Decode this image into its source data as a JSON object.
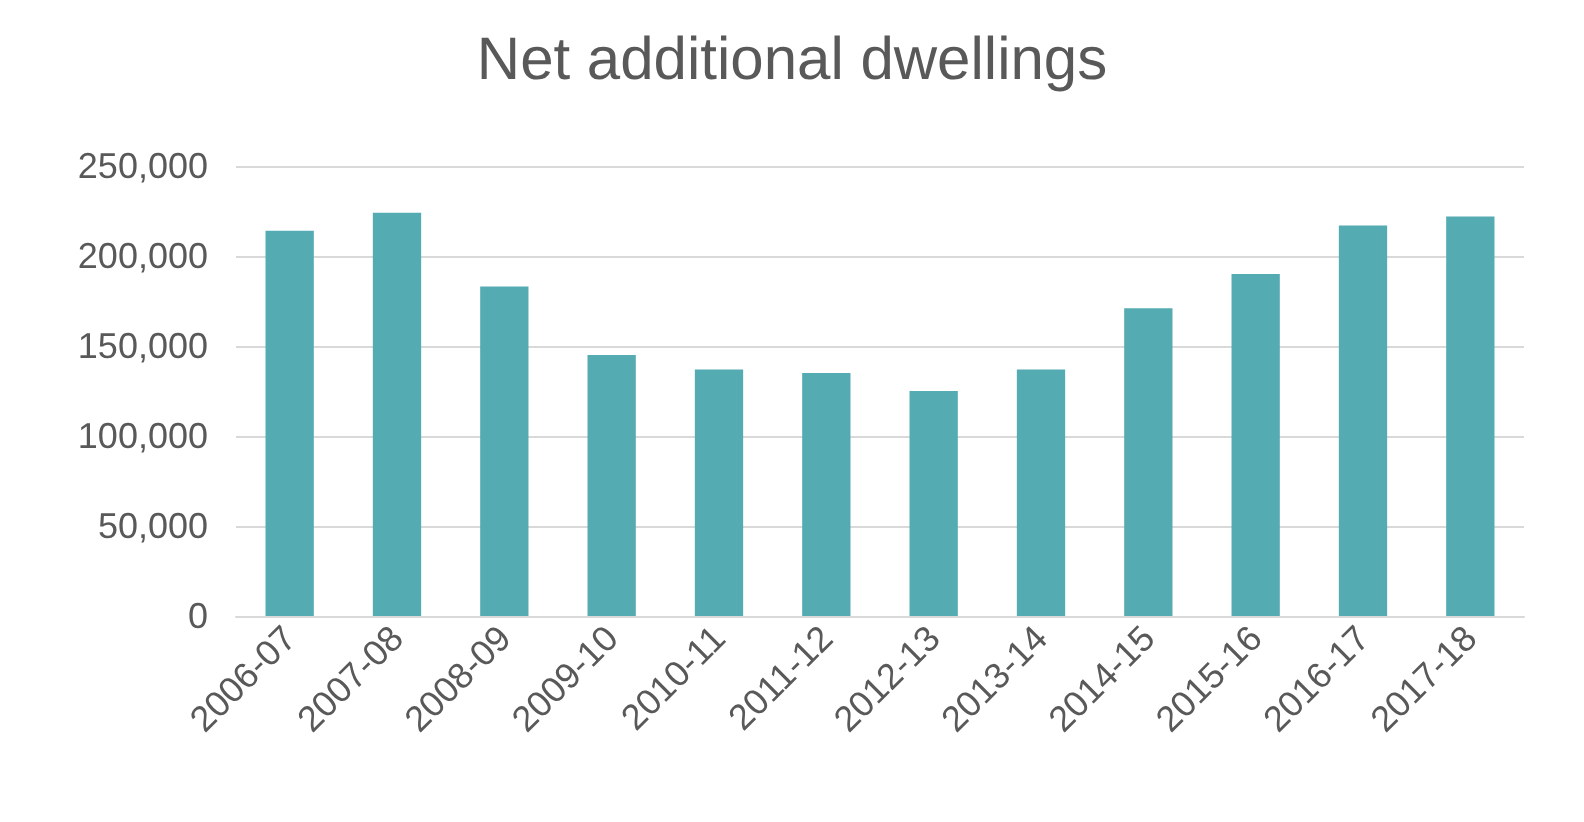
{
  "chart_data": {
    "type": "bar",
    "title": "Net additional dwellings",
    "categories": [
      "2006-07",
      "2007-08",
      "2008-09",
      "2009-10",
      "2010-11",
      "2011-12",
      "2012-13",
      "2013-14",
      "2014-15",
      "2015-16",
      "2016-17",
      "2017-18"
    ],
    "values": [
      214000,
      224000,
      183000,
      145000,
      137000,
      135000,
      125000,
      137000,
      171000,
      190000,
      217000,
      222000
    ],
    "color": "#55abb2",
    "ylim": [
      0,
      250000
    ],
    "yticks": [
      0,
      {
        "value": 50000,
        "label": "50,000"
      },
      {
        "value": 100000,
        "label": "100,000"
      },
      {
        "value": 150000,
        "label": "150,000"
      },
      {
        "value": 200000,
        "label": "200,000"
      },
      {
        "value": 250000,
        "label": "250,000"
      }
    ],
    "grid": "y"
  }
}
